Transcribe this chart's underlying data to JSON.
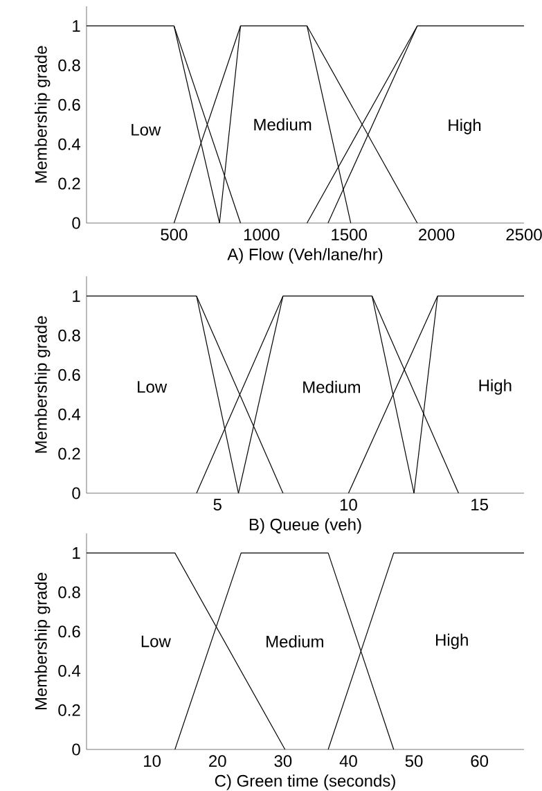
{
  "chart_data": [
    {
      "type": "line",
      "xlabel": "A)  Flow (Veh/lane/hr)",
      "ylabel": "Membership grade",
      "xlim": [
        0,
        2500
      ],
      "ylim": [
        0,
        1.1
      ],
      "xticks": [
        500,
        1000,
        1500,
        2000,
        2500
      ],
      "yticks": [
        0,
        0.2,
        0.4,
        0.6,
        0.8,
        1
      ],
      "series": [
        {
          "color": "#000000",
          "x": [
            0,
            500,
            760
          ],
          "values": [
            1,
            1,
            0
          ]
        },
        {
          "color": "#000000",
          "x": [
            500,
            880
          ],
          "values": [
            1,
            0
          ]
        },
        {
          "color": "#000000",
          "x": [
            500,
            880,
            1260,
            1510
          ],
          "values": [
            0,
            1,
            1,
            0
          ]
        },
        {
          "color": "#000000",
          "x": [
            760,
            880
          ],
          "values": [
            0,
            1
          ]
        },
        {
          "color": "#000000",
          "x": [
            1260,
            1890
          ],
          "values": [
            1,
            0
          ]
        },
        {
          "color": "#000000",
          "x": [
            1260,
            1890,
            2500
          ],
          "values": [
            0,
            1,
            1
          ]
        },
        {
          "color": "#000000",
          "x": [
            1380,
            1890
          ],
          "values": [
            0,
            1
          ]
        }
      ],
      "annotations": [
        "Low",
        "Medium",
        "High"
      ]
    },
    {
      "type": "line",
      "xlabel": "B) Queue (veh)",
      "ylabel": "Membership grade",
      "xlim": [
        0,
        16.7
      ],
      "ylim": [
        0,
        1.1
      ],
      "xticks": [
        5,
        10,
        15
      ],
      "yticks": [
        0,
        0.2,
        0.4,
        0.6,
        0.8,
        1
      ],
      "series": [
        {
          "color": "#000000",
          "x": [
            0,
            4.2,
            5.8
          ],
          "values": [
            1,
            1,
            0
          ]
        },
        {
          "color": "#000000",
          "x": [
            4.2,
            7.5
          ],
          "values": [
            1,
            0
          ]
        },
        {
          "color": "#000000",
          "x": [
            4.2,
            7.5,
            10.9,
            12.5
          ],
          "values": [
            0,
            1,
            1,
            0
          ]
        },
        {
          "color": "#000000",
          "x": [
            5.8,
            7.5
          ],
          "values": [
            0,
            1
          ]
        },
        {
          "color": "#000000",
          "x": [
            10.9,
            14.2
          ],
          "values": [
            1,
            0
          ]
        },
        {
          "color": "#000000",
          "x": [
            10,
            13.4,
            16.7
          ],
          "values": [
            0,
            1,
            1
          ]
        },
        {
          "color": "#000000",
          "x": [
            12.5,
            13.4
          ],
          "values": [
            0,
            1
          ]
        }
      ],
      "annotations": [
        "Low",
        "Medium",
        "High"
      ]
    },
    {
      "type": "line",
      "xlabel": "C)  Green time (seconds)",
      "ylabel": "Membership grade",
      "xlim": [
        0,
        66.8
      ],
      "ylim": [
        0,
        1.1
      ],
      "xticks": [
        10,
        20,
        30,
        40,
        50,
        60
      ],
      "yticks": [
        0,
        0.2,
        0.4,
        0.6,
        0.8,
        1
      ],
      "series": [
        {
          "color": "#000000",
          "x": [
            0,
            13.5,
            30.3
          ],
          "values": [
            1,
            1,
            0
          ]
        },
        {
          "color": "#000000",
          "x": [
            13.5,
            23.6,
            36.9,
            46.9
          ],
          "values": [
            0,
            1,
            1,
            0
          ]
        },
        {
          "color": "#000000",
          "x": [
            36.9,
            46.9,
            66.8
          ],
          "values": [
            0,
            1,
            1
          ]
        }
      ],
      "annotations": [
        "Low",
        "Medium",
        "High"
      ]
    }
  ]
}
